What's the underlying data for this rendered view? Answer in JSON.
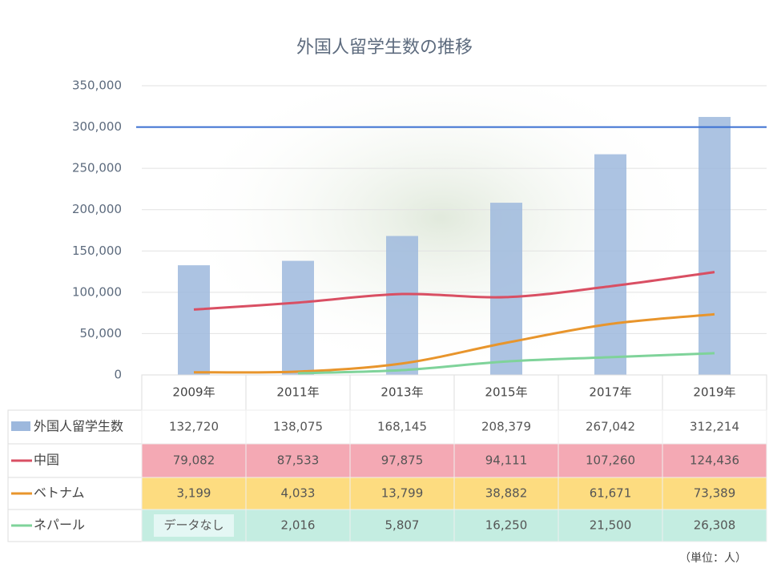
{
  "chart_data": {
    "type": "bar-line-table",
    "title": "外国人留学生数の推移",
    "categories": [
      "2009年",
      "2011年",
      "2013年",
      "2015年",
      "2017年",
      "2019年"
    ],
    "series": [
      {
        "name": "外国人留学生数",
        "kind": "bar",
        "color": "#9db8dd",
        "row_color": "#ffffff",
        "values": [
          132720,
          138075,
          168145,
          208379,
          267042,
          312214
        ],
        "value_labels": [
          "132,720",
          "138,075",
          "168,145",
          "208,379",
          "267,042",
          "312,214"
        ]
      },
      {
        "name": "中国",
        "kind": "line",
        "color": "#d94f63",
        "row_color": "#f4a9b4",
        "values": [
          79082,
          87533,
          97875,
          94111,
          107260,
          124436
        ],
        "value_labels": [
          "79,082",
          "87,533",
          "97,875",
          "94,111",
          "107,260",
          "124,436"
        ]
      },
      {
        "name": "ベトナム",
        "kind": "line",
        "color": "#e8952c",
        "row_color": "#fddc80",
        "values": [
          3199,
          4033,
          13799,
          38882,
          61671,
          73389
        ],
        "value_labels": [
          "3,199",
          "4,033",
          "13,799",
          "38,882",
          "61,671",
          "73,389"
        ]
      },
      {
        "name": "ネパール",
        "kind": "line",
        "color": "#7fd39a",
        "row_color": "#c4ede1",
        "values": [
          null,
          2016,
          5807,
          16250,
          21500,
          26308
        ],
        "value_labels": [
          "データなし",
          "2,016",
          "5,807",
          "16,250",
          "21,500",
          "26,308"
        ]
      }
    ],
    "reference_line": {
      "value": 300000,
      "color": "#3a6fd1"
    },
    "ylim": [
      0,
      350000
    ],
    "yticks": [
      0,
      {
        "value": 50000,
        "label": "50,000"
      },
      {
        "value": 100000,
        "label": "100,000"
      },
      {
        "value": 150000,
        "label": "150,000"
      },
      {
        "value": 200000,
        "label": "200,000"
      },
      {
        "value": 250000,
        "label": "250,000"
      },
      {
        "value": 300000,
        "label": "300,000"
      },
      {
        "value": 350000,
        "label": "350,000"
      }
    ],
    "grid": true,
    "unit_note": "（単位：人）"
  }
}
